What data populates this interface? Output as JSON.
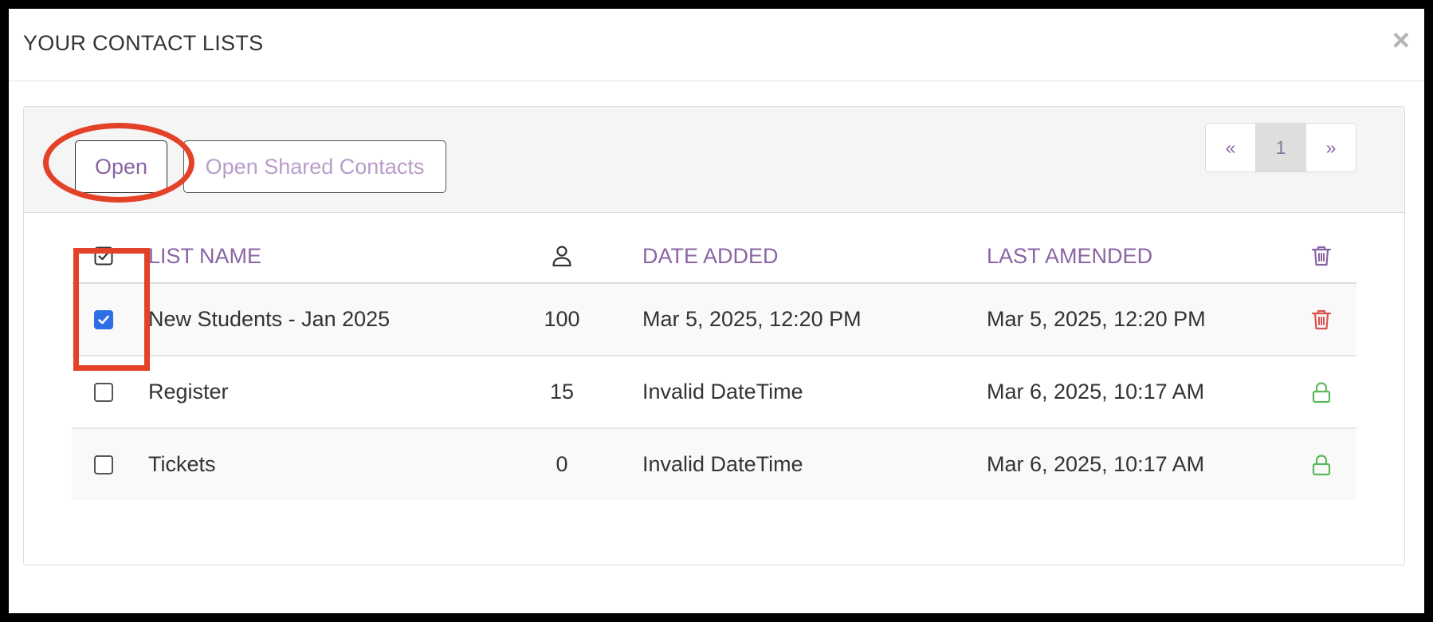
{
  "modal": {
    "title": "YOUR CONTACT LISTS",
    "close_label": "×"
  },
  "toolbar": {
    "open_label": "Open",
    "shared_label": "Open Shared Contacts"
  },
  "pagination": {
    "prev": "«",
    "current": "1",
    "next": "»"
  },
  "table": {
    "headers": {
      "name": "LIST NAME",
      "count_icon": "person-icon",
      "date_added": "DATE ADDED",
      "last_amended": "LAST AMENDED",
      "action_icon": "trash-icon"
    },
    "rows": [
      {
        "checked": true,
        "name": "New Students - Jan 2025",
        "count": "100",
        "date_added": "Mar 5, 2025, 12:20 PM",
        "last_amended": "Mar 5, 2025, 12:20 PM",
        "action_icon": "trash-icon"
      },
      {
        "checked": false,
        "name": "Register",
        "count": "15",
        "date_added": "Invalid DateTime",
        "last_amended": "Mar 6, 2025, 10:17 AM",
        "action_icon": "lock-icon"
      },
      {
        "checked": false,
        "name": "Tickets",
        "count": "0",
        "date_added": "Invalid DateTime",
        "last_amended": "Mar 6, 2025, 10:17 AM",
        "action_icon": "lock-icon"
      }
    ]
  },
  "colors": {
    "accent_purple": "#8a64a4",
    "checkbox_blue": "#2d6ee6",
    "delete_red": "#d9534f",
    "lock_green": "#5cb85c",
    "annotation_red": "#e34228"
  }
}
